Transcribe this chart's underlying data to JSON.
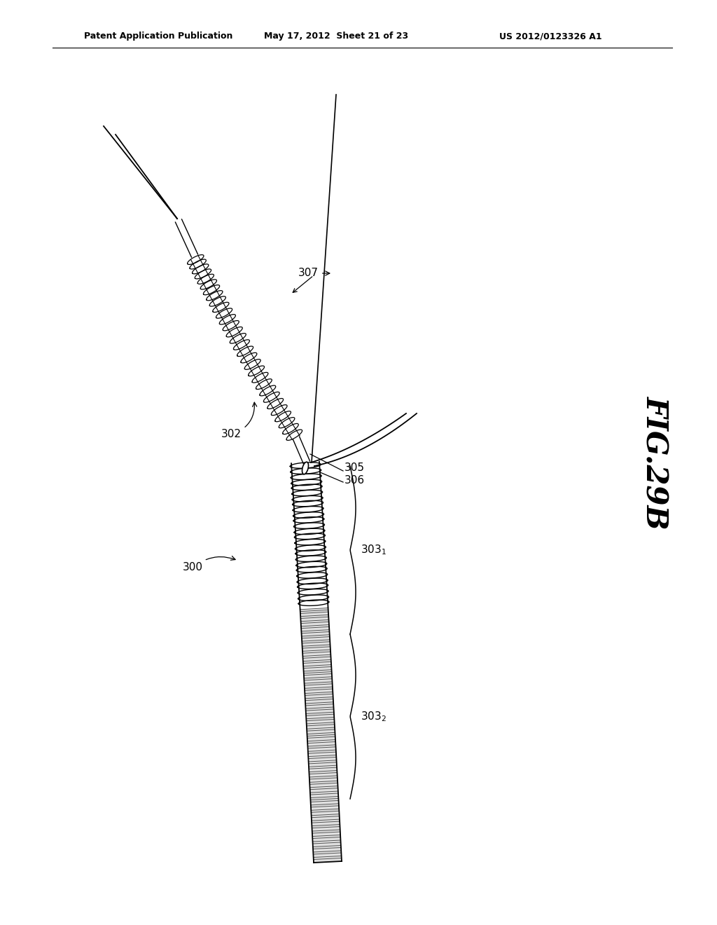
{
  "background_color": "#ffffff",
  "header_left": "Patent Application Publication",
  "header_center": "May 17, 2012  Sheet 21 of 23",
  "header_right": "US 2012/0123326 A1",
  "fig_label": "FIG.29B",
  "line_color": "#000000"
}
